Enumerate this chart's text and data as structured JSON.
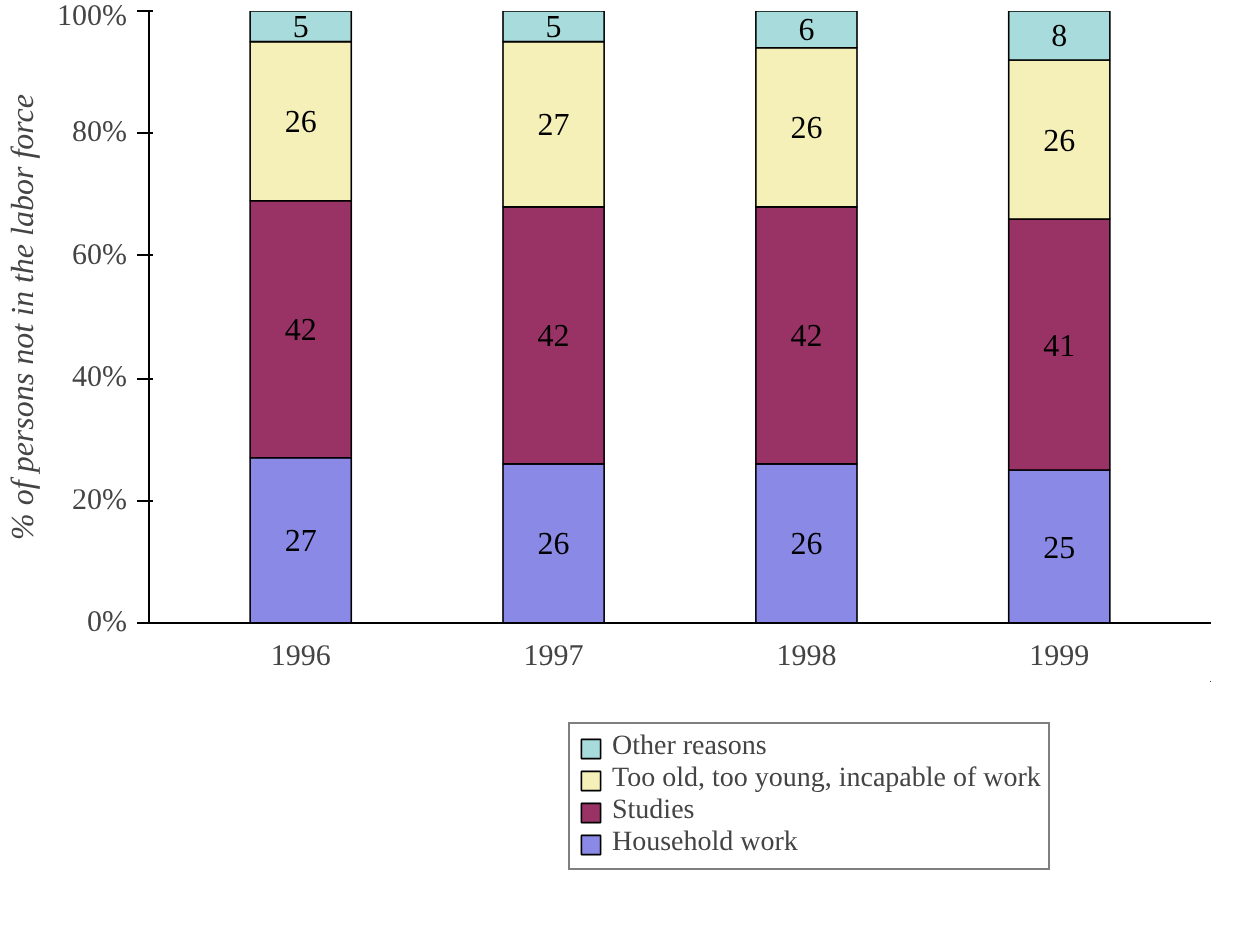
{
  "chart_data": {
    "type": "bar",
    "stacked": true,
    "ylabel": "% of persons not in the labor force",
    "categories": [
      "1996",
      "1997",
      "1998",
      "1999"
    ],
    "series": [
      {
        "name": "Household work",
        "color": "#8a8ae6",
        "values": [
          27,
          26,
          26,
          25
        ]
      },
      {
        "name": "Studies",
        "color": "#993366",
        "values": [
          42,
          42,
          42,
          41
        ]
      },
      {
        "name": "Too old, too young, incapable of work",
        "color": "#f5f0b8",
        "values": [
          26,
          27,
          26,
          26
        ]
      },
      {
        "name": "Other reasons",
        "color": "#a8dcdc",
        "values": [
          5,
          5,
          6,
          8
        ]
      }
    ],
    "ylim": [
      0,
      100
    ],
    "yticks": [
      {
        "value": 0,
        "label": "0%"
      },
      {
        "value": 20,
        "label": "20%"
      },
      {
        "value": 40,
        "label": "40%"
      },
      {
        "value": 60,
        "label": "60%"
      },
      {
        "value": 80,
        "label": "80%"
      },
      {
        "value": 100,
        "label": "100%"
      }
    ],
    "data_labels": true,
    "legend": "bottom",
    "grid": false
  }
}
